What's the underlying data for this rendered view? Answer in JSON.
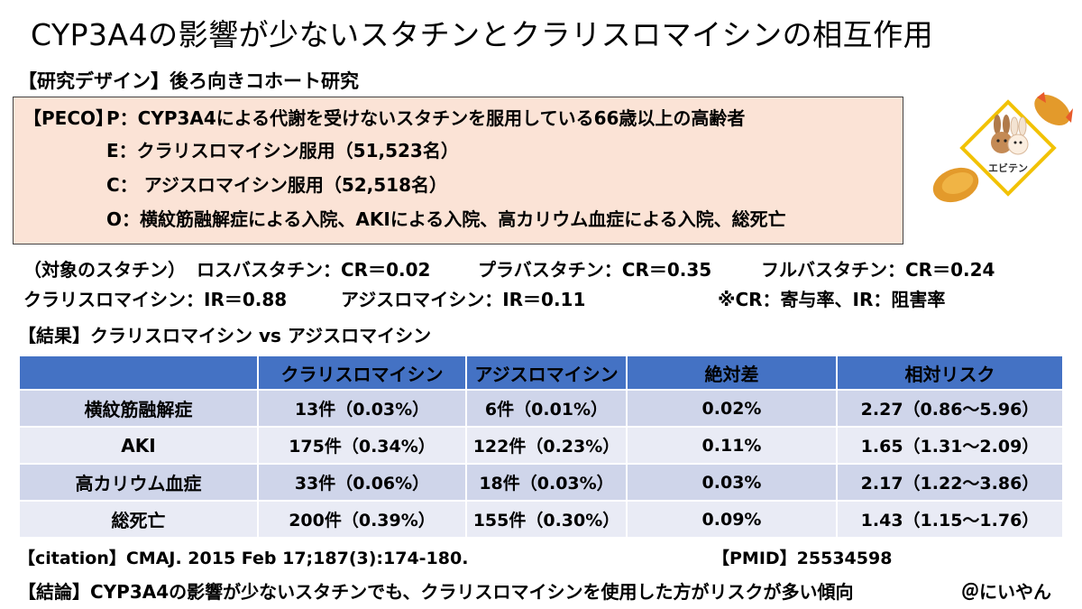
{
  "title": "CYP3A4の影響が少ないスタチンとクラリスロマイシンの相互作用",
  "design": "【研究デザイン】後ろ向きコホート研究",
  "peco": {
    "label": "【PECO】",
    "p": "P：CYP3A4による代謝を受けないスタチンを服用している66歳以上の高齢者",
    "e": "E：クラリスロマイシン服用（51,523名）",
    "c": "C：  アジスロマイシン服用（52,518名）",
    "o": "O：横紋筋融解症による入院、AKIによる入院、高カリウム血症による入院、総死亡"
  },
  "statins": {
    "prefix": "（対象のスタチン）",
    "rosu": "ロスバスタチン：CR＝0.02",
    "prava": "プラバスタチン：CR＝0.35",
    "fluva": "フルバスタチン：CR＝0.24",
    "clari": "クラリスロマイシン：IR＝0.88",
    "azi": "アジスロマイシン：IR＝0.11",
    "note": "※CR：寄与率、IR：阻害率"
  },
  "results_heading": "【結果】クラリスロマイシン vs アジスロマイシン",
  "table": {
    "headers": [
      "",
      "クラリスロマイシン",
      "アジスロマイシン",
      "絶対差",
      "相対リスク"
    ],
    "rows": [
      [
        "横紋筋融解症",
        "13件（0.03%）",
        "6件（0.01%）",
        "0.02%",
        "2.27（0.86～5.96）"
      ],
      [
        "AKI",
        "175件（0.34%）",
        "122件（0.23%）",
        "0.11%",
        "1.65（1.31～2.09）"
      ],
      [
        "高カリウム血症",
        "33件（0.06%）",
        "18件（0.03%）",
        "0.03%",
        "2.17（1.22～3.86）"
      ],
      [
        "総死亡",
        "200件（0.39%）",
        "155件（0.30%）",
        "0.09%",
        "1.43（1.15～1.76）"
      ]
    ]
  },
  "citation": "【citation】CMAJ. 2015 Feb 17;187(3):174-180.",
  "pmid": "【PMID】25534598",
  "conclusion": "【結論】CYP3A4の影響が少ないスタチンでも、クラリスロマイシンを使用した方がリスクが多い傾向",
  "author": "＠にいやん",
  "logo": {
    "text": "エビテン",
    "icon": "shrimp-tempura-rabbits-logo",
    "colors": {
      "frame": "#f2c200",
      "fry": "#e39a2b",
      "shrimp": "#e85a2a"
    }
  }
}
